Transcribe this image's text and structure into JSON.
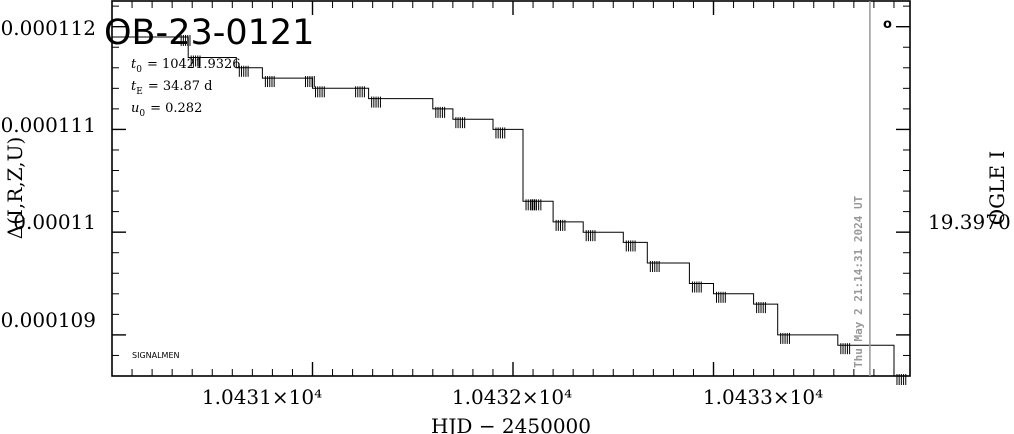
{
  "chart_data": {
    "type": "line",
    "title": "OB-23-0121",
    "xlabel": "HJD − 2450000",
    "ylabel_left": "Δ(I,R,Z,U)",
    "ylabel_right": "OGLE I",
    "params": [
      {
        "symbol": "t",
        "sub": "0",
        "value": "= 10421.9326"
      },
      {
        "symbol": "t",
        "sub": "E",
        "value": "= 34.87  d"
      },
      {
        "symbol": "u",
        "sub": "0",
        "value": "= 0.282"
      }
    ],
    "source_label": "SIGNALMEN",
    "timestamp": "Thu May  2 21:14:31 2024 UT",
    "marker": "o",
    "xlim": [
      10430.0,
      10433.98
    ],
    "ylim": [
      0.0001086,
      0.00011225
    ],
    "x_ticks": [
      {
        "value": 10431,
        "label": "1.0431×10⁴"
      },
      {
        "value": 10432,
        "label": "1.0432×10⁴"
      },
      {
        "value": 10433,
        "label": "1.0433×10⁴"
      }
    ],
    "y_ticks_left": [
      {
        "value": 0.000112,
        "label": "0.000112"
      },
      {
        "value": 0.000111,
        "label": "0.000111"
      },
      {
        "value": 0.00011,
        "label": "0.00011"
      },
      {
        "value": 0.000109,
        "label": "0.000109"
      }
    ],
    "y_tick_right_label": "19.3970",
    "vline_x": 10433.78,
    "series": [
      {
        "x": [
          10430.0,
          10430.33,
          10430.38,
          10430.62,
          10430.75,
          10430.95,
          10431.0,
          10431.2,
          10431.28,
          10431.6,
          10431.7,
          10431.9,
          10432.05,
          10432.08,
          10432.2,
          10432.35,
          10432.55,
          10432.67,
          10432.88,
          10433.0,
          10433.2,
          10433.32,
          10433.62,
          10433.9,
          10433.98
        ],
        "y": [
          0.0001119,
          0.0001119,
          0.0001117,
          0.0001116,
          0.0001115,
          0.0001115,
          0.0001114,
          0.0001114,
          0.0001113,
          0.0001112,
          0.0001111,
          0.000111,
          0.0001103,
          0.0001103,
          0.0001101,
          0.00011,
          0.0001099,
          0.0001097,
          0.0001095,
          0.0001094,
          0.0001093,
          0.000109,
          0.0001089,
          0.0001086,
          0.0001086
        ]
      }
    ]
  }
}
